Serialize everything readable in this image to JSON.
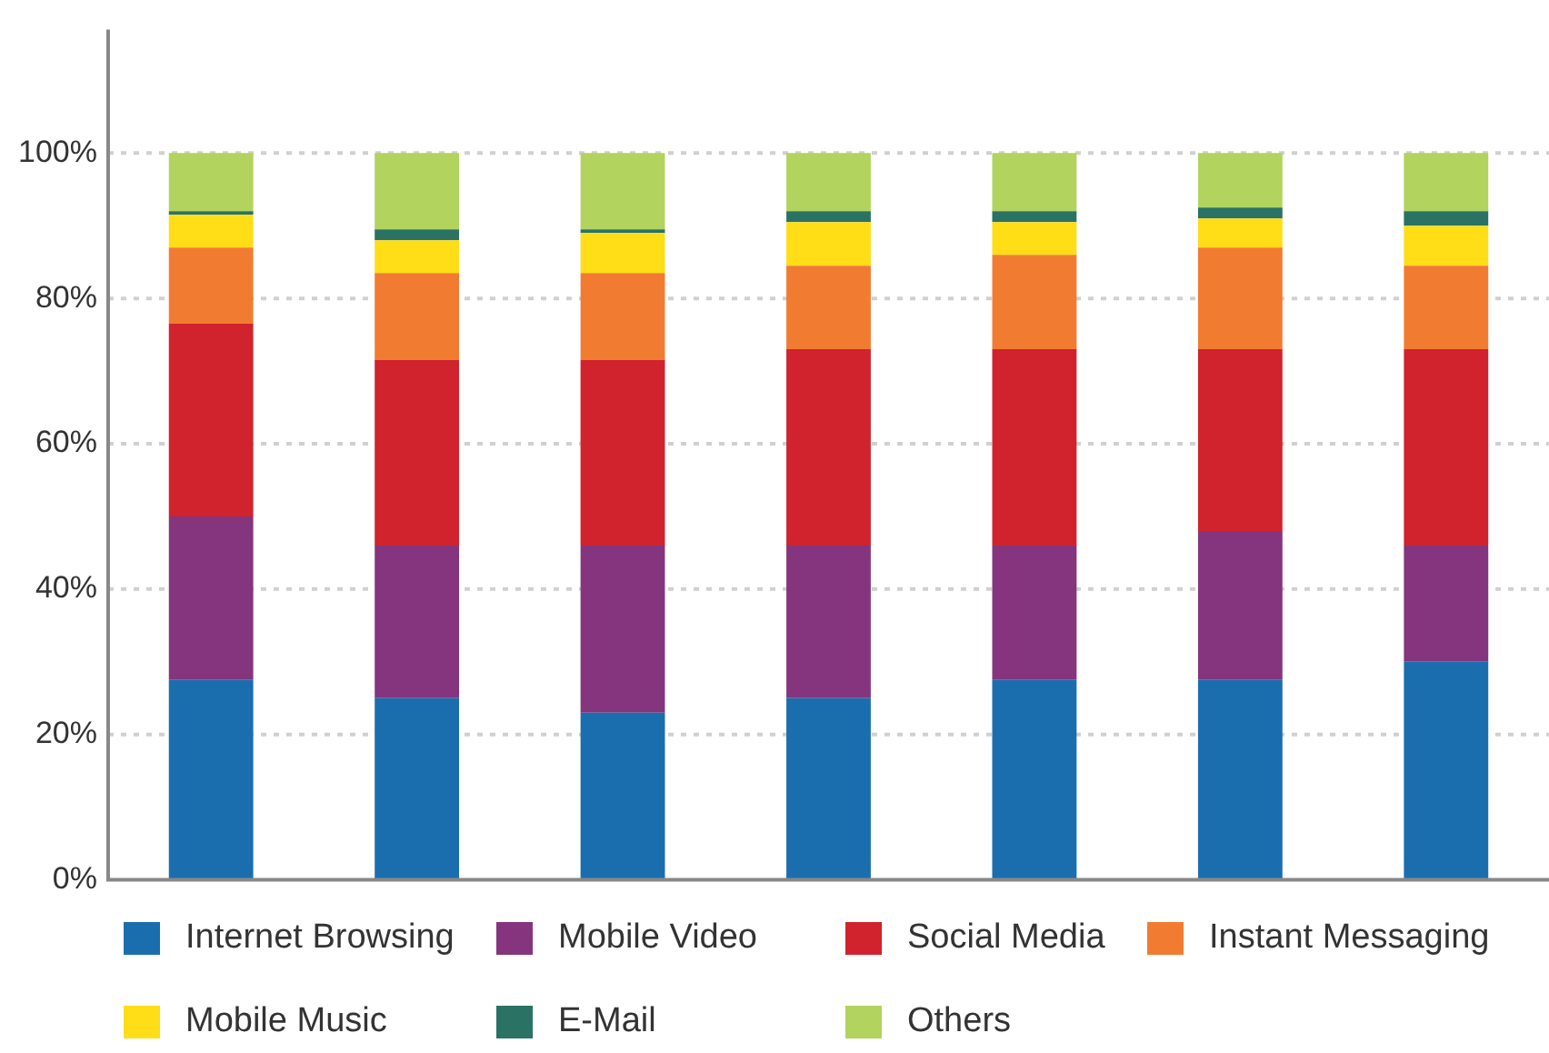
{
  "chart_data": {
    "type": "bar",
    "stacked": true,
    "categories": [
      null,
      null,
      null,
      null,
      null,
      null,
      null
    ],
    "series": [
      {
        "name": "Internet Browsing",
        "color": "#1b6eae",
        "values": [
          27.5,
          25,
          23,
          25,
          27.5,
          27.5,
          30
        ]
      },
      {
        "name": "Mobile Video",
        "color": "#84357e",
        "values": [
          22.5,
          21,
          23,
          21,
          18.5,
          20.5,
          16
        ]
      },
      {
        "name": "Social Media",
        "color": "#d0232d",
        "values": [
          26.5,
          25.5,
          25.5,
          27,
          27,
          25,
          27
        ]
      },
      {
        "name": "Instant Messaging",
        "color": "#f27b32",
        "values": [
          10.5,
          12,
          12,
          11.5,
          13,
          14,
          11.5
        ]
      },
      {
        "name": "Mobile Music",
        "color": "#ffdd17",
        "values": [
          4.5,
          4.5,
          5.5,
          6,
          4.5,
          4,
          5.5
        ]
      },
      {
        "name": "E-Mail",
        "color": "#2a7264",
        "values": [
          0.5,
          1.5,
          0.5,
          1.5,
          1.5,
          1.5,
          2
        ]
      },
      {
        "name": "Others",
        "color": "#b2d35d",
        "values": [
          8,
          10.5,
          10.5,
          8,
          8,
          7.5,
          8
        ]
      }
    ],
    "ylim": [
      0,
      117
    ],
    "yticks": [
      {
        "value": 0,
        "label": "0%"
      },
      {
        "value": 20,
        "label": "20%"
      },
      {
        "value": 40,
        "label": "40%"
      },
      {
        "value": 60,
        "label": "60%"
      },
      {
        "value": 80,
        "label": "80%"
      },
      {
        "value": 100,
        "label": "100%"
      }
    ],
    "grid": "y",
    "legend": "bottom"
  }
}
